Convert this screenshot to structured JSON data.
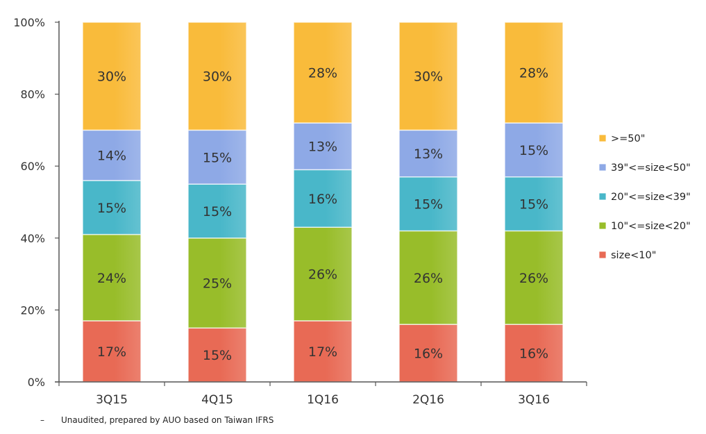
{
  "chart_data": {
    "type": "bar",
    "stacked": true,
    "percent_stacked": true,
    "categories": [
      "3Q15",
      "4Q15",
      "1Q16",
      "2Q16",
      "3Q16"
    ],
    "series": [
      {
        "name": "size<10\"",
        "color": "#E86A55",
        "values": [
          17,
          15,
          17,
          16,
          16
        ],
        "labels": [
          "17%",
          "15%",
          "17%",
          "16%",
          "16%"
        ]
      },
      {
        "name": "10\"<=size<20\"",
        "color": "#98BD2A",
        "values": [
          24,
          25,
          26,
          26,
          26
        ],
        "labels": [
          "24%",
          "25%",
          "26%",
          "26%",
          "26%"
        ]
      },
      {
        "name": "20\"<=size<39\"",
        "color": "#49B7C9",
        "values": [
          15,
          15,
          16,
          15,
          15
        ],
        "labels": [
          "15%",
          "15%",
          "16%",
          "15%",
          "15%"
        ]
      },
      {
        "name": "39\"<=size<50\"",
        "color": "#8EA9E6",
        "values": [
          14,
          15,
          13,
          13,
          15
        ],
        "labels": [
          "14%",
          "15%",
          "13%",
          "13%",
          "15%"
        ]
      },
      {
        "name": ">=50\"",
        "color": "#F9BB3B",
        "values": [
          30,
          30,
          28,
          30,
          28
        ],
        "labels": [
          "30%",
          "30%",
          "28%",
          "30%",
          "28%"
        ]
      }
    ],
    "y_ticks": [
      "0%",
      "20%",
      "40%",
      "60%",
      "80%",
      "100%"
    ],
    "ylim": [
      0,
      100
    ],
    "legend_position": "right",
    "grid": false
  },
  "footnote": {
    "dash": "–",
    "text": "Unaudited, prepared by AUO based on Taiwan IFRS"
  }
}
